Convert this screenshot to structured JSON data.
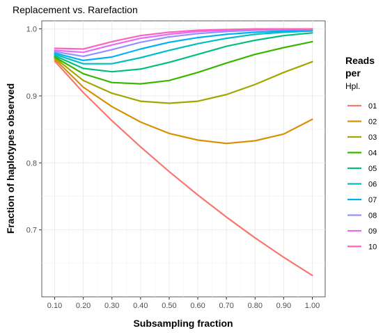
{
  "chart_data": {
    "type": "line",
    "title": "Replacement vs. Rarefaction",
    "xlabel": "Subsampling fraction",
    "ylabel": "Fraction of haplotypes observed",
    "x": [
      0.1,
      0.2,
      0.3,
      0.4,
      0.5,
      0.6,
      0.7,
      0.8,
      0.9,
      1.0
    ],
    "x_tick_labels": [
      "0.10",
      "0.20",
      "0.30",
      "0.40",
      "0.50",
      "0.60",
      "0.70",
      "0.80",
      "0.90",
      "1.00"
    ],
    "xlim": [
      0.055,
      1.045
    ],
    "ylim": [
      0.6,
      1.012
    ],
    "y_ticks": [
      0.7,
      0.8,
      0.9,
      1.0
    ],
    "y_tick_labels": [
      "0.7",
      "0.8",
      "0.9",
      "1.0"
    ],
    "grid": true,
    "legend": {
      "position": "right",
      "title_lines": [
        "Reads",
        "per",
        "Hpl."
      ]
    },
    "series": [
      {
        "name": "01",
        "color": "#F8766D",
        "values": [
          0.952,
          0.905,
          0.863,
          0.824,
          0.787,
          0.752,
          0.719,
          0.688,
          0.659,
          0.632
        ]
      },
      {
        "name": "02",
        "color": "#D89000",
        "values": [
          0.955,
          0.913,
          0.884,
          0.861,
          0.844,
          0.834,
          0.829,
          0.833,
          0.843,
          0.865
        ]
      },
      {
        "name": "03",
        "color": "#A3A500",
        "values": [
          0.957,
          0.923,
          0.904,
          0.892,
          0.889,
          0.892,
          0.902,
          0.917,
          0.935,
          0.951
        ]
      },
      {
        "name": "04",
        "color": "#39B600",
        "values": [
          0.958,
          0.933,
          0.92,
          0.918,
          0.923,
          0.935,
          0.949,
          0.962,
          0.972,
          0.981
        ]
      },
      {
        "name": "05",
        "color": "#00BF7D",
        "values": [
          0.96,
          0.941,
          0.936,
          0.94,
          0.95,
          0.962,
          0.974,
          0.983,
          0.99,
          0.994
        ]
      },
      {
        "name": "06",
        "color": "#00BFC4",
        "values": [
          0.962,
          0.948,
          0.948,
          0.957,
          0.968,
          0.978,
          0.986,
          0.992,
          0.995,
          0.997
        ]
      },
      {
        "name": "07",
        "color": "#00B0F6",
        "values": [
          0.964,
          0.953,
          0.958,
          0.97,
          0.98,
          0.987,
          0.992,
          0.995,
          0.997,
          0.998
        ]
      },
      {
        "name": "08",
        "color": "#9590FF",
        "values": [
          0.966,
          0.959,
          0.969,
          0.98,
          0.988,
          0.993,
          0.996,
          0.998,
          0.999,
          0.999
        ]
      },
      {
        "name": "09",
        "color": "#E76BF3",
        "values": [
          0.968,
          0.965,
          0.976,
          0.986,
          0.992,
          0.996,
          0.998,
          0.999,
          0.999,
          1.0
        ]
      },
      {
        "name": "10",
        "color": "#FF62BC",
        "values": [
          0.971,
          0.97,
          0.981,
          0.99,
          0.995,
          0.998,
          0.999,
          1.0,
          1.0,
          1.0
        ]
      }
    ]
  }
}
